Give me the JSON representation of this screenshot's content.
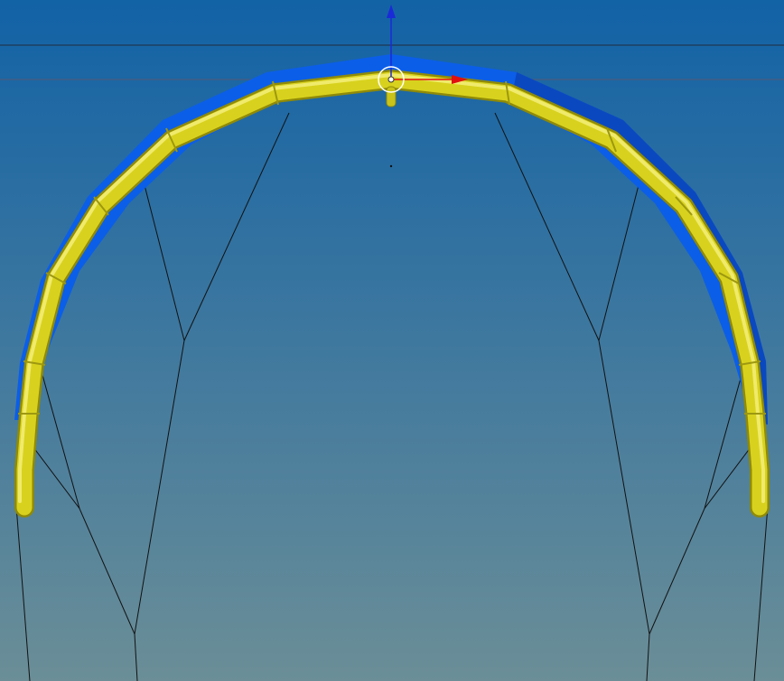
{
  "app": {
    "view": "3d-viewport",
    "object": "kite-canopy"
  },
  "colors": {
    "background_top": "#1262a6",
    "background_bottom": "#6b8e97",
    "canopy_blue": "#0b5ee8",
    "canopy_blue_dark": "#0a44b8",
    "tube_yellow": "#d8d21e",
    "tube_yellow_highlight": "#f4ef7a",
    "tube_yellow_shadow": "#8f8a08",
    "bridle_line": "#111111",
    "horizon_line": "#202a3a",
    "gizmo_x_axis": "#e01010",
    "gizmo_z_axis": "#1a2ad8",
    "pivot_ring": "#ffffff"
  },
  "icons": {
    "gizmo_x_arrow": "x-axis-arrow-icon",
    "gizmo_z_arrow": "z-axis-arrow-icon",
    "pivot": "pivot-ring-icon"
  }
}
